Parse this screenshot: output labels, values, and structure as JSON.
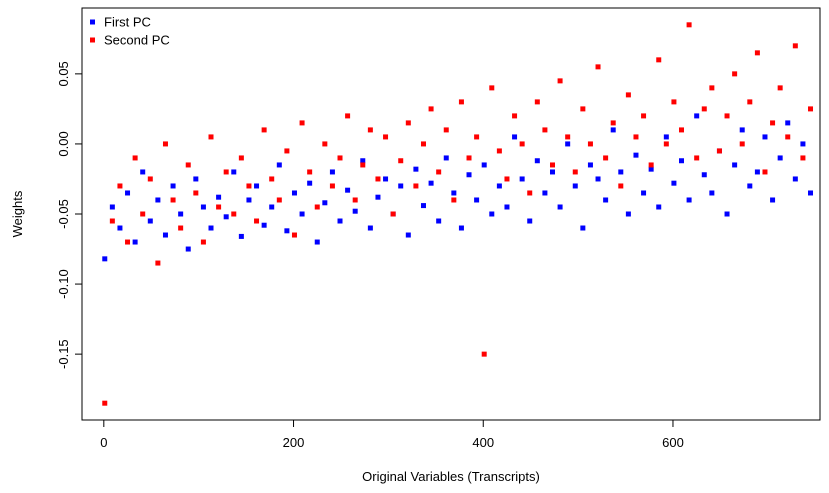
{
  "chart_data": {
    "type": "scatter",
    "x_label": "Original Variables (Transcripts)",
    "y_label": "Weights",
    "x": [
      1,
      9,
      17,
      25,
      33,
      41,
      49,
      57,
      65,
      73,
      81,
      89,
      97,
      105,
      113,
      121,
      129,
      137,
      145,
      153,
      161,
      169,
      177,
      185,
      193,
      201,
      209,
      217,
      225,
      233,
      241,
      249,
      257,
      265,
      273,
      281,
      289,
      297,
      305,
      313,
      321,
      329,
      337,
      345,
      353,
      361,
      369,
      377,
      385,
      393,
      401,
      409,
      417,
      425,
      433,
      441,
      449,
      457,
      465,
      473,
      481,
      489,
      497,
      505,
      513,
      521,
      529,
      537,
      545,
      553,
      561,
      569,
      577,
      585,
      593,
      601,
      609,
      617,
      625,
      633,
      641,
      649,
      657,
      665,
      673,
      681,
      689,
      697,
      705,
      713,
      721,
      729,
      737,
      745
    ],
    "series": [
      {
        "name": "First PC",
        "color": "#0000ff",
        "values": [
          -0.082,
          -0.045,
          -0.06,
          -0.035,
          -0.07,
          -0.02,
          -0.055,
          -0.04,
          -0.065,
          -0.03,
          -0.05,
          -0.075,
          -0.025,
          -0.045,
          -0.06,
          -0.038,
          -0.052,
          -0.02,
          -0.066,
          -0.04,
          -0.03,
          -0.058,
          -0.045,
          -0.015,
          -0.062,
          -0.035,
          -0.05,
          -0.028,
          -0.07,
          -0.042,
          -0.02,
          -0.055,
          -0.033,
          -0.048,
          -0.012,
          -0.06,
          -0.038,
          -0.025,
          -0.05,
          -0.03,
          -0.065,
          -0.018,
          -0.044,
          -0.028,
          -0.055,
          -0.01,
          -0.035,
          -0.06,
          -0.022,
          -0.04,
          -0.015,
          -0.05,
          -0.03,
          -0.045,
          0.005,
          -0.025,
          -0.055,
          -0.012,
          -0.035,
          -0.02,
          -0.045,
          0.0,
          -0.03,
          -0.06,
          -0.015,
          -0.025,
          -0.04,
          0.01,
          -0.02,
          -0.05,
          -0.008,
          -0.035,
          -0.018,
          -0.045,
          0.005,
          -0.028,
          -0.012,
          -0.04,
          0.02,
          -0.022,
          -0.035,
          -0.005,
          -0.05,
          -0.015,
          0.01,
          -0.03,
          -0.02,
          0.005,
          -0.04,
          -0.01,
          0.015,
          -0.025,
          0.0,
          -0.035
        ]
      },
      {
        "name": "Second PC",
        "color": "#ff0000",
        "values": [
          -0.185,
          -0.055,
          -0.03,
          -0.07,
          -0.01,
          -0.05,
          -0.025,
          -0.085,
          0.0,
          -0.04,
          -0.06,
          -0.015,
          -0.035,
          -0.07,
          0.005,
          -0.045,
          -0.02,
          -0.05,
          -0.01,
          -0.03,
          -0.055,
          0.01,
          -0.025,
          -0.04,
          -0.005,
          -0.065,
          0.015,
          -0.02,
          -0.045,
          0.0,
          -0.03,
          -0.01,
          0.02,
          -0.04,
          -0.015,
          0.01,
          -0.025,
          0.005,
          -0.05,
          -0.012,
          0.015,
          -0.03,
          0.0,
          0.025,
          -0.02,
          0.01,
          -0.04,
          0.03,
          -0.01,
          0.005,
          -0.15,
          0.04,
          -0.005,
          -0.025,
          0.02,
          0.0,
          -0.035,
          0.03,
          0.01,
          -0.015,
          0.045,
          0.005,
          -0.02,
          0.025,
          0.0,
          0.055,
          -0.01,
          0.015,
          -0.03,
          0.035,
          0.005,
          0.02,
          -0.015,
          0.06,
          0.0,
          0.03,
          0.01,
          0.085,
          -0.01,
          0.025,
          0.04,
          -0.005,
          0.02,
          0.05,
          0.0,
          0.03,
          0.065,
          -0.02,
          0.015,
          0.04,
          0.005,
          0.07,
          -0.01,
          0.025
        ]
      }
    ],
    "xlim": [
      -23,
      755
    ],
    "xticks": [
      0,
      200,
      400,
      600
    ],
    "ylim": [
      -0.197,
      0.097
    ],
    "yticks": [
      0.05,
      {
        "value": 0,
        "label": "0.00"
      },
      -0.05,
      {
        "value": -0.1,
        "label": "-0.10"
      },
      -0.15
    ],
    "legend": "top-left"
  }
}
